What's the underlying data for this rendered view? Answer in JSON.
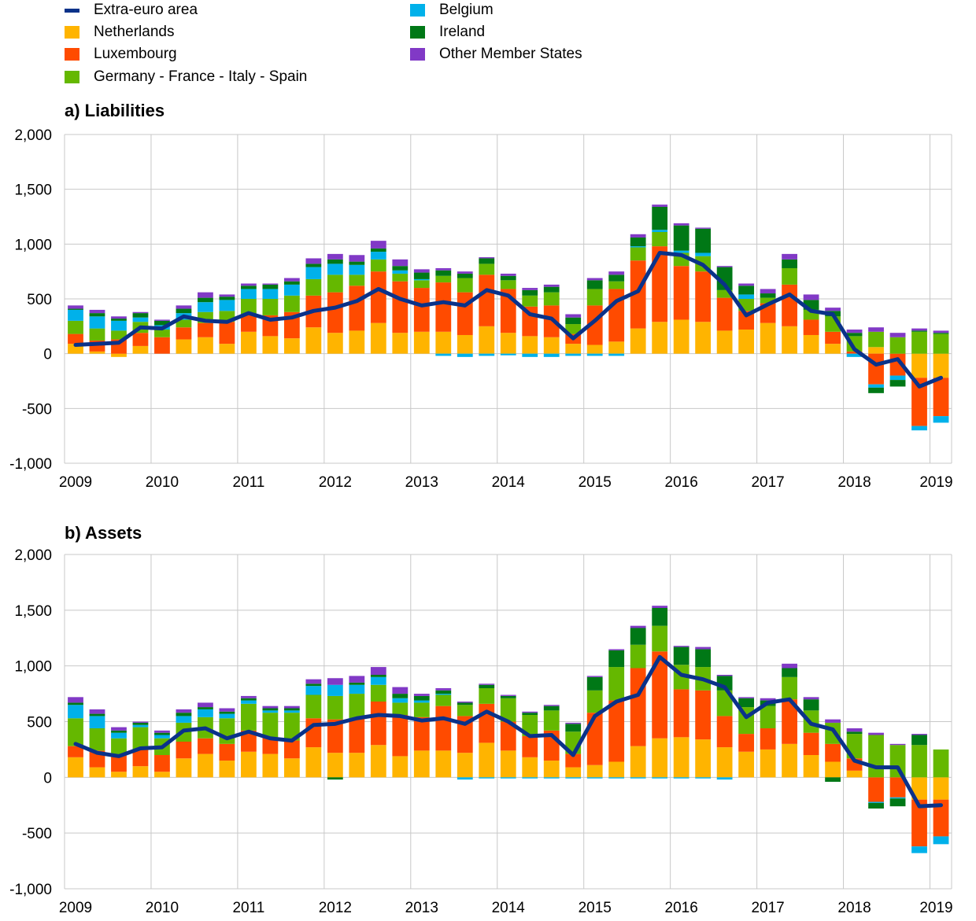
{
  "legend": [
    {
      "name": "Extra-euro area",
      "color": "#0a3289",
      "kind": "line"
    },
    {
      "name": "Netherlands",
      "color": "#ffb400",
      "kind": "bar"
    },
    {
      "name": "Luxembourg",
      "color": "#ff4b00",
      "kind": "bar"
    },
    {
      "name": "Germany - France - Italy - Spain",
      "color": "#65b800",
      "kind": "bar"
    },
    {
      "name": "Belgium",
      "color": "#00b1ea",
      "kind": "bar"
    },
    {
      "name": "Ireland",
      "color": "#007816",
      "kind": "bar"
    },
    {
      "name": "Other Member States",
      "color": "#8139c6",
      "kind": "bar"
    }
  ],
  "chart_data": [
    {
      "type": "bar",
      "stacked": true,
      "title": "a) Liabilities",
      "x_tick_labels": [
        "2009",
        "2010",
        "2011",
        "2012",
        "2013",
        "2014",
        "2015",
        "2016",
        "2017",
        "2018",
        "2019"
      ],
      "y_ticks": [
        -1000,
        -500,
        0,
        500,
        1000,
        1500,
        2000
      ],
      "y_tick_labels": [
        "-1,000",
        "-500",
        "0",
        "500",
        "1,000",
        "1,500",
        "2,000"
      ],
      "ylim": [
        -1000,
        2000
      ],
      "grid": true,
      "legend_position": "top",
      "series": [
        {
          "name": "Netherlands",
          "color": "#ffb400",
          "values": [
            90,
            20,
            -30,
            70,
            0,
            130,
            150,
            90,
            200,
            160,
            140,
            240,
            190,
            210,
            280,
            190,
            200,
            200,
            170,
            250,
            190,
            160,
            150,
            90,
            80,
            110,
            230,
            290,
            310,
            290,
            210,
            220,
            280,
            250,
            170,
            90,
            0,
            60,
            0,
            -220,
            -220
          ]
        },
        {
          "name": "Luxembourg",
          "color": "#ff4b00",
          "values": [
            90,
            100,
            130,
            120,
            150,
            110,
            130,
            200,
            160,
            190,
            240,
            290,
            370,
            410,
            470,
            470,
            400,
            450,
            390,
            470,
            400,
            270,
            290,
            90,
            360,
            480,
            620,
            690,
            490,
            460,
            300,
            170,
            180,
            380,
            140,
            110,
            20,
            -280,
            -200,
            -440,
            -350
          ]
        },
        {
          "name": "Germany - France - Italy - Spain",
          "color": "#65b800",
          "values": [
            120,
            110,
            80,
            100,
            70,
            70,
            100,
            100,
            140,
            150,
            150,
            150,
            160,
            100,
            110,
            70,
            70,
            60,
            130,
            100,
            80,
            100,
            120,
            90,
            150,
            70,
            120,
            130,
            120,
            140,
            70,
            110,
            50,
            150,
            90,
            140,
            140,
            140,
            150,
            200,
            180
          ]
        },
        {
          "name": "Belgium",
          "color": "#00b1ea",
          "values": [
            100,
            110,
            90,
            40,
            40,
            60,
            90,
            100,
            90,
            90,
            100,
            110,
            100,
            90,
            70,
            30,
            10,
            -20,
            -30,
            -20,
            -15,
            -30,
            -30,
            -20,
            -20,
            -20,
            10,
            20,
            20,
            30,
            0,
            40,
            0,
            0,
            0,
            0,
            -30,
            -30,
            -40,
            -40,
            -60
          ]
        },
        {
          "name": "Ireland",
          "color": "#007816",
          "values": [
            10,
            30,
            20,
            40,
            40,
            40,
            40,
            30,
            30,
            40,
            30,
            30,
            40,
            30,
            30,
            40,
            60,
            50,
            40,
            50,
            40,
            50,
            50,
            60,
            80,
            60,
            80,
            210,
            230,
            220,
            210,
            80,
            40,
            80,
            90,
            50,
            30,
            -50,
            -60,
            10,
            10
          ]
        },
        {
          "name": "Other Member States",
          "color": "#8139c6",
          "values": [
            30,
            30,
            20,
            10,
            10,
            30,
            50,
            20,
            20,
            10,
            30,
            50,
            50,
            60,
            70,
            60,
            30,
            20,
            20,
            10,
            20,
            20,
            20,
            30,
            20,
            30,
            30,
            20,
            20,
            10,
            10,
            20,
            40,
            50,
            50,
            30,
            30,
            40,
            40,
            20,
            20
          ]
        },
        {
          "name": "Extra-euro area",
          "color": "#0a3289",
          "kind": "line",
          "values": [
            80,
            90,
            100,
            240,
            230,
            340,
            300,
            290,
            370,
            310,
            330,
            390,
            420,
            480,
            590,
            500,
            440,
            470,
            440,
            580,
            530,
            360,
            320,
            140,
            300,
            480,
            570,
            920,
            900,
            810,
            630,
            350,
            450,
            540,
            390,
            360,
            40,
            -100,
            -50,
            -300,
            -220
          ]
        }
      ]
    },
    {
      "type": "bar",
      "stacked": true,
      "title": "b) Assets",
      "x_tick_labels": [
        "2009",
        "2010",
        "2011",
        "2012",
        "2013",
        "2014",
        "2015",
        "2016",
        "2017",
        "2018",
        "2019"
      ],
      "y_ticks": [
        -1000,
        -500,
        0,
        500,
        1000,
        1500,
        2000
      ],
      "y_tick_labels": [
        "-1,000",
        "-500",
        "0",
        "500",
        "1,000",
        "1,500",
        "2,000"
      ],
      "ylim": [
        -1000,
        2000
      ],
      "grid": true,
      "legend_position": "top",
      "series": [
        {
          "name": "Netherlands",
          "color": "#ffb400",
          "values": [
            180,
            90,
            50,
            100,
            50,
            170,
            210,
            150,
            230,
            210,
            170,
            270,
            220,
            220,
            290,
            190,
            240,
            240,
            220,
            310,
            240,
            180,
            150,
            90,
            110,
            140,
            280,
            350,
            360,
            340,
            270,
            230,
            250,
            300,
            200,
            140,
            60,
            0,
            0,
            -200,
            -200
          ]
        },
        {
          "name": "Luxembourg",
          "color": "#ff4b00",
          "values": [
            100,
            150,
            150,
            150,
            150,
            150,
            140,
            150,
            190,
            150,
            160,
            260,
            300,
            310,
            390,
            370,
            300,
            400,
            330,
            350,
            260,
            190,
            270,
            120,
            470,
            550,
            700,
            780,
            430,
            440,
            280,
            160,
            190,
            400,
            200,
            160,
            110,
            -220,
            -180,
            -420,
            -330
          ]
        },
        {
          "name": "Germany - France - Italy - Spain",
          "color": "#65b800",
          "values": [
            250,
            200,
            150,
            200,
            150,
            170,
            190,
            230,
            240,
            220,
            250,
            210,
            210,
            220,
            150,
            110,
            130,
            100,
            100,
            140,
            210,
            190,
            180,
            200,
            200,
            300,
            210,
            230,
            220,
            210,
            230,
            240,
            200,
            200,
            200,
            190,
            220,
            380,
            290,
            290,
            250
          ]
        },
        {
          "name": "Belgium",
          "color": "#00b1ea",
          "values": [
            120,
            110,
            50,
            20,
            30,
            60,
            70,
            40,
            30,
            20,
            20,
            80,
            100,
            80,
            70,
            40,
            20,
            10,
            -20,
            -10,
            -10,
            -10,
            -10,
            -10,
            -10,
            -10,
            -10,
            -10,
            -10,
            -10,
            -20,
            0,
            0,
            0,
            0,
            0,
            0,
            -10,
            -10,
            -60,
            -70
          ]
        },
        {
          "name": "Ireland",
          "color": "#007816",
          "values": [
            20,
            20,
            20,
            20,
            20,
            30,
            20,
            20,
            20,
            20,
            20,
            20,
            -20,
            20,
            20,
            40,
            40,
            30,
            20,
            30,
            20,
            20,
            40,
            70,
            120,
            150,
            150,
            160,
            160,
            160,
            130,
            80,
            50,
            80,
            100,
            -40,
            20,
            -50,
            -70,
            90,
            0
          ]
        },
        {
          "name": "Other Member States",
          "color": "#8139c6",
          "values": [
            50,
            40,
            30,
            10,
            20,
            30,
            40,
            30,
            20,
            20,
            20,
            40,
            60,
            60,
            70,
            60,
            20,
            20,
            10,
            10,
            10,
            10,
            10,
            10,
            10,
            10,
            20,
            20,
            10,
            20,
            10,
            10,
            20,
            40,
            20,
            30,
            30,
            20,
            10,
            10,
            0
          ]
        },
        {
          "name": "Extra-euro area",
          "color": "#0a3289",
          "kind": "line",
          "values": [
            300,
            220,
            190,
            260,
            270,
            420,
            440,
            350,
            410,
            350,
            330,
            470,
            480,
            530,
            560,
            550,
            510,
            530,
            480,
            590,
            500,
            370,
            380,
            200,
            550,
            680,
            740,
            1080,
            920,
            880,
            810,
            540,
            670,
            700,
            480,
            430,
            150,
            90,
            90,
            -260,
            -250
          ]
        }
      ]
    }
  ]
}
